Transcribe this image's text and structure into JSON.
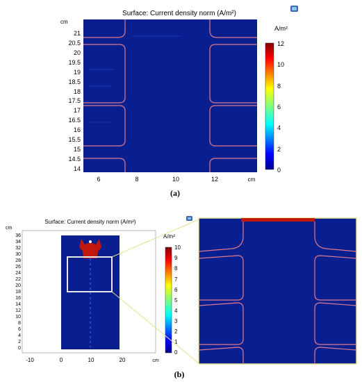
{
  "panel_a": {
    "title": "Surface: Current density norm (A/m²)",
    "y_unit": "cm",
    "x_unit": "cm",
    "y_ticks": [
      "21",
      "20.5",
      "20",
      "19.5",
      "19",
      "18.5",
      "18",
      "17.5",
      "17",
      "16.5",
      "16",
      "15.5",
      "15",
      "14.5",
      "14"
    ],
    "x_ticks": [
      "6",
      "8",
      "10",
      "12"
    ],
    "colorbar_title": "A/m²",
    "colorbar_ticks": [
      "12",
      "10",
      "8",
      "6",
      "4",
      "2",
      "0"
    ],
    "caption": "(a)"
  },
  "panel_b": {
    "title": "Surface: Current density norm (A/m²)",
    "y_unit": "cm",
    "x_unit": "cm",
    "y_ticks": [
      "36",
      "34",
      "32",
      "30",
      "28",
      "26",
      "24",
      "22",
      "20",
      "18",
      "16",
      "14",
      "12",
      "10",
      "8",
      "6",
      "4",
      "2",
      "0"
    ],
    "x_ticks": [
      "-10",
      "0",
      "10",
      "20"
    ],
    "colorbar_title": "A/m²",
    "colorbar_ticks": [
      "10",
      "9",
      "8",
      "7",
      "6",
      "5",
      "4",
      "3",
      "2",
      "1",
      "0"
    ],
    "caption": "(b)"
  },
  "colors": {
    "field": "#0a1f8f",
    "contour": "#e07a8a",
    "hot": "#c0180c",
    "callout": "#e8e090"
  }
}
